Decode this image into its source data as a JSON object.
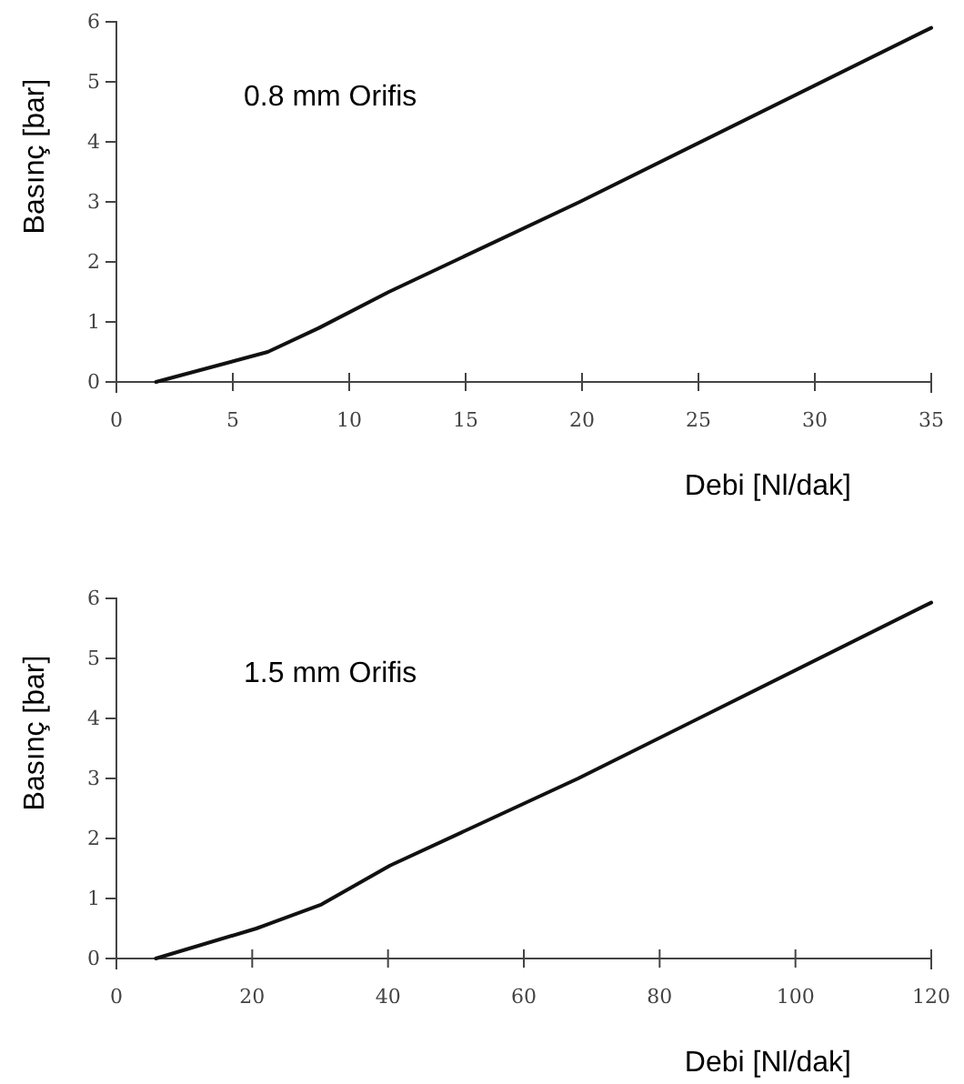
{
  "chart_data": [
    {
      "type": "line",
      "xlabel": "Debi [Nl/dak]",
      "ylabel": "Basınç [bar]",
      "annotations": [
        "0.8 mm Orifis"
      ],
      "series": [
        {
          "color": "#111111",
          "x": [
            1.7,
            6.5,
            8.7,
            11.7,
            19.9,
            35
          ],
          "values": [
            0,
            0.5,
            0.9,
            1.5,
            3.0,
            5.9
          ]
        }
      ],
      "xlim": [
        0,
        35
      ],
      "xticks": [
        0,
        5,
        10,
        15,
        20,
        25,
        30,
        35
      ],
      "ylim": [
        0,
        6
      ],
      "yticks": [
        0,
        1,
        2,
        3,
        4,
        5,
        6
      ]
    },
    {
      "type": "line",
      "xlabel": "Debi [Nl/dak]",
      "ylabel": "Basınç [bar]",
      "annotations": [
        "1.5 mm Orifis"
      ],
      "series": [
        {
          "color": "#111111",
          "x": [
            5.8,
            20.6,
            30.2,
            40.3,
            68,
            120
          ],
          "values": [
            0,
            0.5,
            0.9,
            1.55,
            3.0,
            5.93
          ]
        }
      ],
      "xlim": [
        0,
        120
      ],
      "xticks": [
        0,
        20,
        40,
        60,
        80,
        100,
        120
      ],
      "ylim": [
        0,
        6
      ],
      "yticks": [
        0,
        1,
        2,
        3,
        4,
        5,
        6
      ]
    }
  ]
}
